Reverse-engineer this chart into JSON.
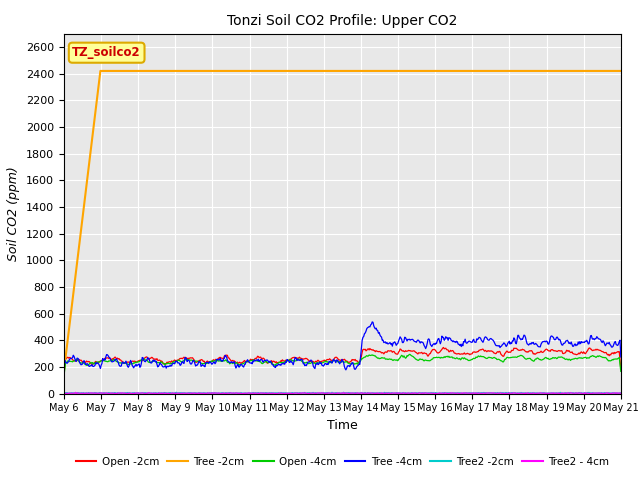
{
  "title": "Tonzi Soil CO2 Profile: Upper CO2",
  "ylabel": "Soil CO2 (ppm)",
  "xlabel": "Time",
  "ylim": [
    0,
    2700
  ],
  "yticks": [
    0,
    200,
    400,
    600,
    800,
    1000,
    1200,
    1400,
    1600,
    1800,
    2000,
    2200,
    2400,
    2600
  ],
  "background_color": "#ffffff",
  "plot_bg_color": "#e8e8e8",
  "grid_color": "#ffffff",
  "legend_label": "TZ_soilco2",
  "legend_box_facecolor": "#ffff99",
  "legend_box_edgecolor": "#ddaa00",
  "legend_text_color": "#cc0000",
  "series": [
    {
      "name": "Open -2cm",
      "color": "#ff0000"
    },
    {
      "name": "Tree -2cm",
      "color": "#ffa500"
    },
    {
      "name": "Open -4cm",
      "color": "#00cc00"
    },
    {
      "name": "Tree -4cm",
      "color": "#0000ff"
    },
    {
      "name": "Tree2 -2cm",
      "color": "#00cccc"
    },
    {
      "name": "Tree2 - 4cm",
      "color": "#ff00ff"
    }
  ],
  "n_points": 720,
  "transition_day": 8.0,
  "total_days": 15
}
